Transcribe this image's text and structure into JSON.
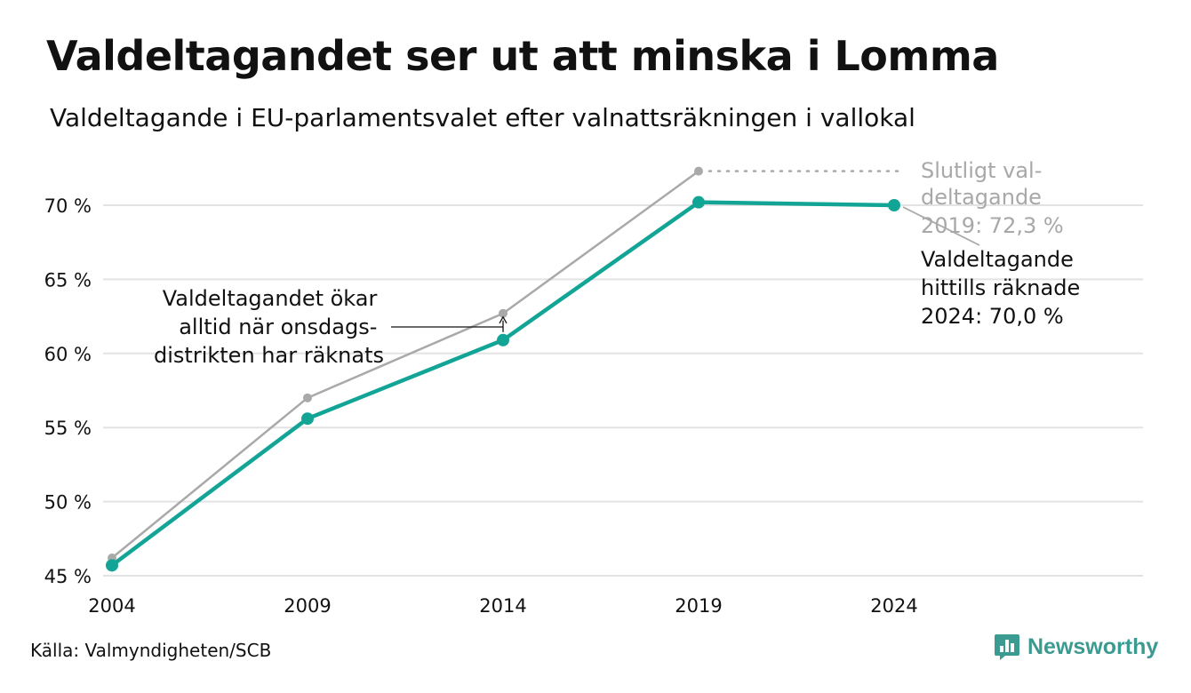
{
  "header": {
    "title": "Valdeltagandet ser ut att minska i Lomma",
    "subtitle": "Valdeltagande i EU-parlamentsvalet efter valnattsräkningen i vallokal"
  },
  "footer": {
    "source": "Källa: Valmyndigheten/SCB",
    "brand": "Newsworthy"
  },
  "colors": {
    "current": "#12a596",
    "final": "#a9a9a9",
    "grid": "#e3e3e3",
    "brand": "#3c9b91"
  },
  "icons": {
    "brand_logo": "bar-chart-speech-bubble-icon"
  },
  "chart_data": {
    "type": "line",
    "x": [
      2004,
      2009,
      2014,
      2019,
      2024
    ],
    "xlabel": "",
    "ylabel": "",
    "ylim": [
      45,
      72.5
    ],
    "yticks": [
      45,
      50,
      55,
      60,
      65,
      70
    ],
    "ytick_labels": [
      "45 %",
      "50 %",
      "55 %",
      "60 %",
      "65 %",
      "70 %"
    ],
    "xtick_labels": [
      "2004",
      "2009",
      "2014",
      "2019",
      "2024"
    ],
    "grid": "horizontal",
    "series": [
      {
        "key": "final",
        "values": [
          46.2,
          57.0,
          62.7,
          72.3,
          null
        ]
      },
      {
        "key": "current",
        "values": [
          45.7,
          55.6,
          60.9,
          70.2,
          70.0
        ]
      }
    ],
    "annotations": {
      "final_label": [
        "Slutligt val-",
        "deltagande",
        "2019: 72,3 %"
      ],
      "current_label": [
        "Valdeltagande",
        "hittills räknade",
        "2024: 70,0 %"
      ],
      "wednesday_note": [
        "Valdeltagandet ökar",
        "alltid när onsdags-",
        "distrikten har räknats"
      ]
    }
  }
}
